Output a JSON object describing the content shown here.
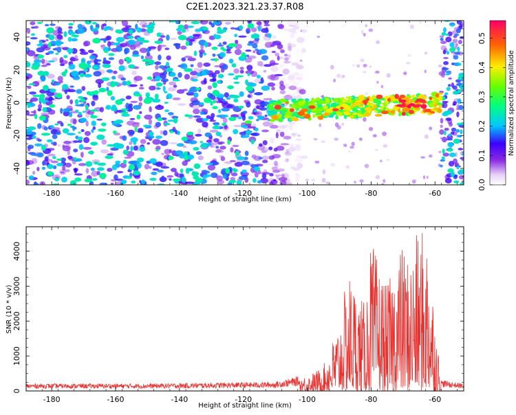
{
  "title": "C2E1.2023.321.23.37.R08",
  "colors": {
    "snr_line": "#e8312f",
    "frame": "#000000"
  },
  "chart_data": [
    {
      "type": "heatmap",
      "xlabel": "Height of straight line (km)",
      "ylabel": "Frequency (Hz)",
      "xlim": [
        -188,
        -51
      ],
      "ylim": [
        -50,
        50
      ],
      "xticks": [
        -180,
        -160,
        -140,
        -120,
        -100,
        -80,
        -60
      ],
      "yticks": [
        -40,
        -20,
        0,
        20,
        40
      ],
      "colorbar": {
        "label": "Normalized spectral amplitude",
        "range": [
          0,
          0.56
        ],
        "ticks": [
          0.0,
          0.1,
          0.2,
          0.3,
          0.4,
          0.5
        ],
        "colormap": "rainbow (purple to red)"
      },
      "features": {
        "noise_region_km": [
          -188,
          -105
        ],
        "gap_region_km": [
          -103,
          -58
        ],
        "signal_band_center_hz": -5,
        "signal_band_width_hz": 12,
        "signal_peak_km": [
          -72,
          -63
        ],
        "edge_noise_region_km": [
          -58,
          -51
        ]
      }
    },
    {
      "type": "line",
      "xlabel": "Height of straight line (km)",
      "ylabel": "SNR (10 * v/v)",
      "xlim": [
        -188,
        -51
      ],
      "ylim": [
        0,
        4700
      ],
      "xticks": [
        -180,
        -160,
        -140,
        -120,
        -100,
        -80,
        -60
      ],
      "yticks": [
        0,
        1000,
        2000,
        3000,
        4000
      ],
      "series": [
        {
          "approx_envelope": [
            [
              -188,
              200
            ],
            [
              -150,
              200
            ],
            [
              -110,
              250
            ],
            [
              -100,
              450
            ],
            [
              -95,
              700
            ],
            [
              -90,
              2000
            ],
            [
              -87,
              3500
            ],
            [
              -82,
              2500
            ],
            [
              -80,
              4350
            ],
            [
              -75,
              3000
            ],
            [
              -71,
              4250
            ],
            [
              -68,
              3900
            ],
            [
              -65,
              4650
            ],
            [
              -62,
              4600
            ],
            [
              -60,
              2200
            ],
            [
              -58,
              300
            ],
            [
              -51,
              200
            ]
          ]
        }
      ]
    }
  ]
}
